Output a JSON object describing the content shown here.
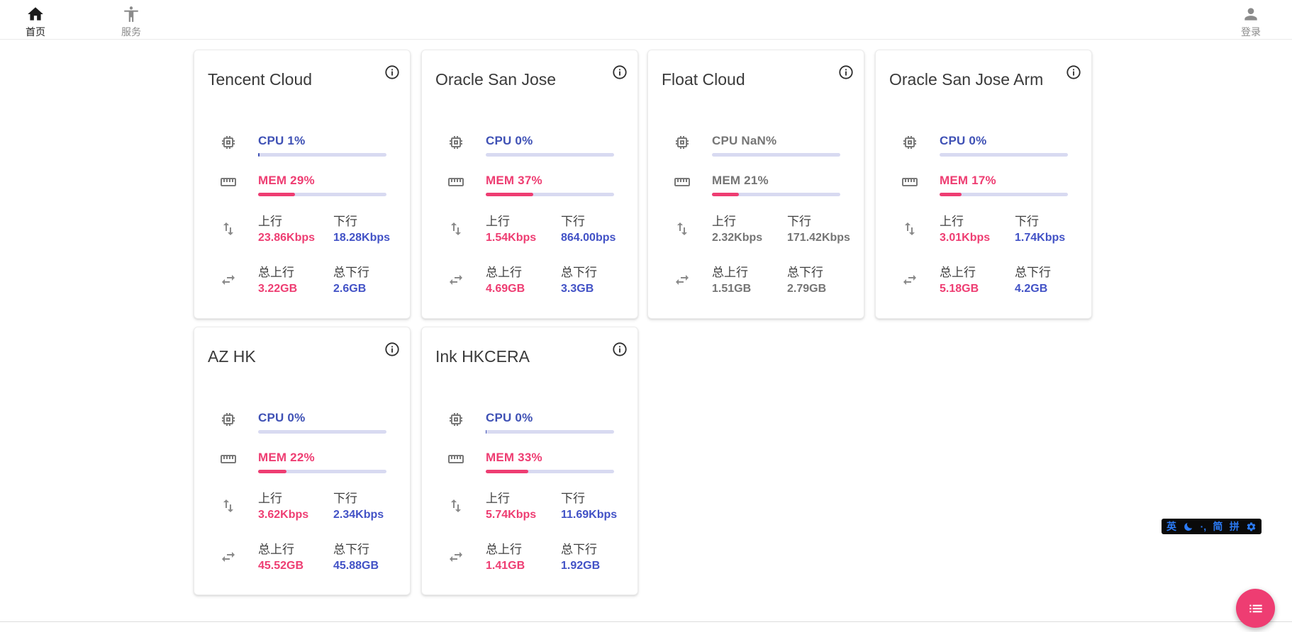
{
  "nav": {
    "home": {
      "label": "首页"
    },
    "services": {
      "label": "服务"
    },
    "login": {
      "label": "登录"
    }
  },
  "labels": {
    "up": "上行",
    "down": "下行",
    "total_up": "总上行",
    "total_down": "总下行"
  },
  "colors": {
    "accent_blue": "#3f51b5",
    "value_blue": "#4252c6",
    "accent_pink": "#ee3d72",
    "offline_gray": "#757575",
    "bar_track": "#d8daf1",
    "fab_pink": "#ee3d72",
    "ime_blue": "#2b7bf6"
  },
  "cards": [
    {
      "title": "Tencent Cloud",
      "online": true,
      "cpu_label": "CPU 1%",
      "cpu_pct": 1,
      "mem_label": "MEM 29%",
      "mem_pct": 29,
      "up_value": "23.86Kbps",
      "down_value": "18.28Kbps",
      "total_up_value": "3.22GB",
      "total_down_value": "2.6GB"
    },
    {
      "title": "Oracle San Jose",
      "online": true,
      "cpu_label": "CPU 0%",
      "cpu_pct": 0,
      "mem_label": "MEM 37%",
      "mem_pct": 37,
      "up_value": "1.54Kbps",
      "down_value": "864.00bps",
      "total_up_value": "4.69GB",
      "total_down_value": "3.3GB"
    },
    {
      "title": "Float Cloud",
      "online": false,
      "cpu_label": "CPU NaN%",
      "cpu_pct": 0,
      "mem_label": "MEM 21%",
      "mem_pct": 21,
      "up_value": "2.32Kbps",
      "down_value": "171.42Kbps",
      "total_up_value": "1.51GB",
      "total_down_value": "2.79GB"
    },
    {
      "title": "Oracle San Jose Arm",
      "online": true,
      "cpu_label": "CPU 0%",
      "cpu_pct": 0,
      "mem_label": "MEM 17%",
      "mem_pct": 17,
      "up_value": "3.01Kbps",
      "down_value": "1.74Kbps",
      "total_up_value": "5.18GB",
      "total_down_value": "4.2GB"
    },
    {
      "title": "AZ HK",
      "online": true,
      "cpu_label": "CPU 0%",
      "cpu_pct": 0,
      "mem_label": "MEM 22%",
      "mem_pct": 22,
      "up_value": "3.62Kbps",
      "down_value": "2.34Kbps",
      "total_up_value": "45.52GB",
      "total_down_value": "45.88GB"
    },
    {
      "title": "Ink HKCERA",
      "online": true,
      "cpu_label": "CPU 0%",
      "cpu_pct": 0.5,
      "mem_label": "MEM 33%",
      "mem_pct": 33,
      "up_value": "5.74Kbps",
      "down_value": "11.69Kbps",
      "total_up_value": "1.41GB",
      "total_down_value": "1.92GB"
    }
  ],
  "ime": {
    "lang": "英",
    "punct": "·,",
    "simplified": "简",
    "pinyin": "拼"
  }
}
